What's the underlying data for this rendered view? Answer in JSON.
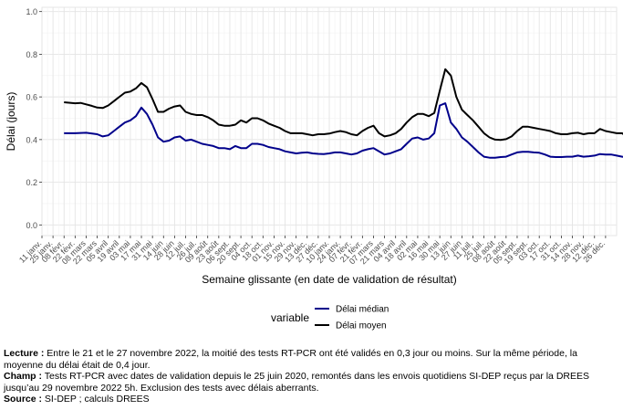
{
  "chart_data": {
    "type": "line",
    "title": "",
    "xlabel": "Semaine glissante (en date de validation de résultat)",
    "ylabel": "Délai (jours)",
    "ylim": [
      -0.05,
      1.02
    ],
    "yticks": [
      0.0,
      0.2,
      0.4,
      0.6,
      0.8,
      1.0
    ],
    "ytick_labels": [
      "0.0",
      "0.2",
      "0.4",
      "0.6",
      "0.8",
      "1.0"
    ],
    "grid": true,
    "x_start_date": "2021-01-11",
    "xtick_labels": [
      "11 janv.",
      "25 janv.",
      "08 févr.",
      "22 févr.",
      "08 mars",
      "22 mars",
      "05 avril",
      "19 avril",
      "03 mai",
      "17 mai",
      "31 mai",
      "14 juin",
      "28 juin",
      "12 juil.",
      "26 juil.",
      "09 août",
      "23 août",
      "06 sept.",
      "20 sept.",
      "04 oct.",
      "18 oct.",
      "01 nov.",
      "15 nov.",
      "29 nov.",
      "13 déc.",
      "27 déc.",
      "10 janv.",
      "24 janv.",
      "07 févr.",
      "21 févr.",
      "07 mars",
      "21 mars",
      "04 avril",
      "18 avril",
      "02 mai",
      "16 mai",
      "30 mai",
      "13 juin",
      "27 juin",
      "11 juil.",
      "25 juil.",
      "08 août",
      "22 août",
      "05 sept.",
      "19 sept.",
      "03 oct.",
      "17 oct.",
      "31 oct.",
      "14 nov.",
      "28 nov.",
      "12 déc.",
      "26 déc."
    ],
    "legend": {
      "title": "variable",
      "position": "bottom"
    },
    "series": [
      {
        "name": "Délai médian",
        "color": "#00008b",
        "points": [
          [
            4,
            0.43
          ],
          [
            6,
            0.43
          ],
          [
            8,
            0.432
          ],
          [
            10,
            0.425
          ],
          [
            11,
            0.415
          ],
          [
            12,
            0.42
          ],
          [
            13,
            0.44
          ],
          [
            14,
            0.46
          ],
          [
            15,
            0.48
          ],
          [
            16,
            0.49
          ],
          [
            17,
            0.51
          ],
          [
            18,
            0.55
          ],
          [
            19,
            0.52
          ],
          [
            20,
            0.47
          ],
          [
            21,
            0.41
          ],
          [
            22,
            0.39
          ],
          [
            23,
            0.395
          ],
          [
            24,
            0.41
          ],
          [
            25,
            0.415
          ],
          [
            26,
            0.395
          ],
          [
            27,
            0.4
          ],
          [
            28,
            0.39
          ],
          [
            29,
            0.38
          ],
          [
            30,
            0.375
          ],
          [
            31,
            0.37
          ],
          [
            32,
            0.36
          ],
          [
            33,
            0.36
          ],
          [
            34,
            0.355
          ],
          [
            35,
            0.37
          ],
          [
            36,
            0.36
          ],
          [
            37,
            0.36
          ],
          [
            38,
            0.38
          ],
          [
            39,
            0.38
          ],
          [
            40,
            0.375
          ],
          [
            41,
            0.365
          ],
          [
            42,
            0.36
          ],
          [
            43,
            0.355
          ],
          [
            44,
            0.345
          ],
          [
            45,
            0.34
          ],
          [
            46,
            0.335
          ],
          [
            47,
            0.338
          ],
          [
            48,
            0.34
          ],
          [
            49,
            0.335
          ],
          [
            50,
            0.333
          ],
          [
            51,
            0.332
          ],
          [
            52,
            0.335
          ],
          [
            53,
            0.34
          ],
          [
            54,
            0.34
          ],
          [
            55,
            0.335
          ],
          [
            56,
            0.33
          ],
          [
            57,
            0.335
          ],
          [
            58,
            0.348
          ],
          [
            59,
            0.355
          ],
          [
            60,
            0.36
          ],
          [
            61,
            0.345
          ],
          [
            62,
            0.33
          ],
          [
            63,
            0.335
          ],
          [
            64,
            0.345
          ],
          [
            65,
            0.355
          ],
          [
            66,
            0.38
          ],
          [
            67,
            0.405
          ],
          [
            68,
            0.41
          ],
          [
            69,
            0.4
          ],
          [
            70,
            0.405
          ],
          [
            71,
            0.43
          ],
          [
            72,
            0.56
          ],
          [
            73,
            0.57
          ],
          [
            74,
            0.48
          ],
          [
            75,
            0.45
          ],
          [
            76,
            0.41
          ],
          [
            77,
            0.39
          ],
          [
            78,
            0.365
          ],
          [
            79,
            0.34
          ],
          [
            80,
            0.32
          ],
          [
            81,
            0.315
          ],
          [
            82,
            0.315
          ],
          [
            83,
            0.318
          ],
          [
            84,
            0.32
          ],
          [
            85,
            0.33
          ],
          [
            86,
            0.34
          ],
          [
            87,
            0.343
          ],
          [
            88,
            0.343
          ],
          [
            89,
            0.34
          ],
          [
            90,
            0.338
          ],
          [
            91,
            0.33
          ],
          [
            92,
            0.32
          ],
          [
            93,
            0.318
          ],
          [
            94,
            0.318
          ],
          [
            95,
            0.32
          ],
          [
            96,
            0.32
          ],
          [
            97,
            0.325
          ],
          [
            98,
            0.32
          ],
          [
            99,
            0.322
          ],
          [
            100,
            0.325
          ],
          [
            101,
            0.332
          ],
          [
            102,
            0.33
          ],
          [
            103,
            0.33
          ],
          [
            104,
            0.325
          ],
          [
            105,
            0.32
          ],
          [
            106,
            0.315
          ],
          [
            107,
            0.315
          ],
          [
            108,
            0.32
          ],
          [
            109,
            0.318
          ],
          [
            110,
            0.315
          ],
          [
            111,
            0.315
          ],
          [
            112,
            0.318
          ],
          [
            113,
            0.32
          ],
          [
            114,
            0.322
          ],
          [
            115,
            0.33
          ],
          [
            116,
            0.33
          ],
          [
            117,
            0.33
          ],
          [
            118,
            0.33
          ],
          [
            119,
            0.328
          ],
          [
            null,
            null
          ],
          [
            121,
            0.33
          ],
          [
            122,
            0.325
          ],
          [
            123,
            0.33
          ],
          [
            124,
            0.325
          ],
          [
            125,
            0.328
          ]
        ]
      },
      {
        "name": "Délai moyen",
        "color": "#000000",
        "points": [
          [
            4,
            0.575
          ],
          [
            6,
            0.57
          ],
          [
            7,
            0.572
          ],
          [
            8,
            0.565
          ],
          [
            9,
            0.558
          ],
          [
            10,
            0.55
          ],
          [
            11,
            0.548
          ],
          [
            12,
            0.56
          ],
          [
            13,
            0.58
          ],
          [
            14,
            0.6
          ],
          [
            15,
            0.62
          ],
          [
            16,
            0.625
          ],
          [
            17,
            0.64
          ],
          [
            18,
            0.665
          ],
          [
            19,
            0.645
          ],
          [
            20,
            0.59
          ],
          [
            21,
            0.53
          ],
          [
            22,
            0.53
          ],
          [
            23,
            0.545
          ],
          [
            24,
            0.555
          ],
          [
            25,
            0.56
          ],
          [
            26,
            0.53
          ],
          [
            27,
            0.52
          ],
          [
            28,
            0.515
          ],
          [
            29,
            0.515
          ],
          [
            30,
            0.505
          ],
          [
            31,
            0.49
          ],
          [
            32,
            0.47
          ],
          [
            33,
            0.465
          ],
          [
            34,
            0.465
          ],
          [
            35,
            0.47
          ],
          [
            36,
            0.49
          ],
          [
            37,
            0.48
          ],
          [
            38,
            0.5
          ],
          [
            39,
            0.5
          ],
          [
            40,
            0.49
          ],
          [
            41,
            0.475
          ],
          [
            42,
            0.465
          ],
          [
            43,
            0.455
          ],
          [
            44,
            0.44
          ],
          [
            45,
            0.43
          ],
          [
            46,
            0.43
          ],
          [
            47,
            0.43
          ],
          [
            48,
            0.425
          ],
          [
            49,
            0.42
          ],
          [
            50,
            0.425
          ],
          [
            51,
            0.425
          ],
          [
            52,
            0.428
          ],
          [
            53,
            0.435
          ],
          [
            54,
            0.44
          ],
          [
            55,
            0.435
          ],
          [
            56,
            0.425
          ],
          [
            57,
            0.42
          ],
          [
            58,
            0.44
          ],
          [
            59,
            0.455
          ],
          [
            60,
            0.465
          ],
          [
            61,
            0.43
          ],
          [
            62,
            0.415
          ],
          [
            63,
            0.42
          ],
          [
            64,
            0.43
          ],
          [
            65,
            0.45
          ],
          [
            66,
            0.48
          ],
          [
            67,
            0.505
          ],
          [
            68,
            0.52
          ],
          [
            69,
            0.52
          ],
          [
            70,
            0.51
          ],
          [
            71,
            0.525
          ],
          [
            72,
            0.63
          ],
          [
            73,
            0.73
          ],
          [
            74,
            0.7
          ],
          [
            75,
            0.6
          ],
          [
            76,
            0.54
          ],
          [
            77,
            0.515
          ],
          [
            78,
            0.49
          ],
          [
            79,
            0.46
          ],
          [
            80,
            0.43
          ],
          [
            81,
            0.41
          ],
          [
            82,
            0.4
          ],
          [
            83,
            0.398
          ],
          [
            84,
            0.402
          ],
          [
            85,
            0.415
          ],
          [
            86,
            0.44
          ],
          [
            87,
            0.46
          ],
          [
            88,
            0.46
          ],
          [
            89,
            0.455
          ],
          [
            90,
            0.45
          ],
          [
            91,
            0.445
          ],
          [
            92,
            0.44
          ],
          [
            93,
            0.43
          ],
          [
            94,
            0.425
          ],
          [
            95,
            0.425
          ],
          [
            96,
            0.43
          ],
          [
            97,
            0.432
          ],
          [
            98,
            0.425
          ],
          [
            99,
            0.43
          ],
          [
            100,
            0.43
          ],
          [
            101,
            0.45
          ],
          [
            102,
            0.44
          ],
          [
            103,
            0.435
          ],
          [
            104,
            0.43
          ],
          [
            105,
            0.43
          ],
          [
            106,
            0.41
          ],
          [
            107,
            0.41
          ],
          [
            108,
            0.415
          ],
          [
            109,
            0.412
          ],
          [
            110,
            0.41
          ],
          [
            111,
            0.415
          ],
          [
            112,
            0.415
          ],
          [
            113,
            0.42
          ],
          [
            114,
            0.415
          ],
          [
            115,
            0.42
          ],
          [
            116,
            0.428
          ],
          [
            117,
            0.43
          ],
          [
            118,
            0.425
          ],
          [
            119,
            0.42
          ],
          [
            null,
            null
          ],
          [
            121,
            0.445
          ],
          [
            122,
            0.43
          ],
          [
            123,
            0.44
          ],
          [
            124,
            0.42
          ],
          [
            125,
            0.43
          ]
        ]
      }
    ]
  },
  "notes": {
    "lecture_label": "Lecture :",
    "lecture_text": " Entre le 21 et le 27 novembre 2022, la moitié des tests RT-PCR ont été validés en 0,3 jour ou moins. Sur la même période, la moyenne du délai était de 0,4 jour.",
    "champ_label": "Champ :",
    "champ_text": " Tests RT-PCR avec dates de validation depuis le 25 juin 2020, remontés dans les envois quotidiens SI-DEP reçus par la DREES jusqu’au 29 novembre 2022 5h. Exclusion des tests avec délais aberrants.",
    "source_label": "Source :",
    "source_text": " SI-DEP ; calculs DREES"
  }
}
